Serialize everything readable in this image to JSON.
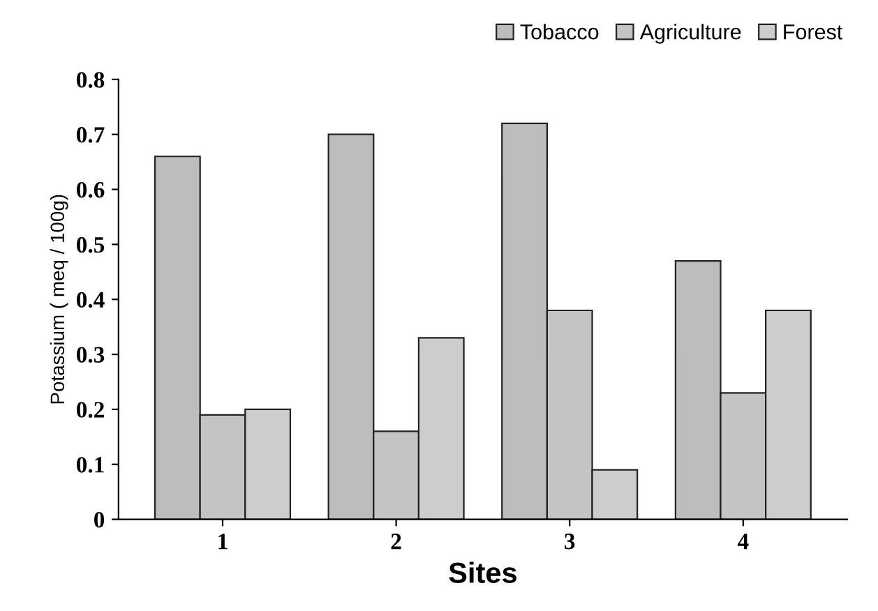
{
  "chart_data": {
    "type": "bar",
    "xlabel": "Sites",
    "ylabel": "Potassium ( meq / 100g)",
    "categories": [
      "1",
      "2",
      "3",
      "4"
    ],
    "series": [
      {
        "name": "Tobacco",
        "color": "#bdbdbd",
        "values": [
          0.66,
          0.7,
          0.72,
          0.47
        ]
      },
      {
        "name": "Agriculture",
        "color": "#c4c4c4",
        "values": [
          0.19,
          0.16,
          0.38,
          0.23
        ]
      },
      {
        "name": "Forest",
        "color": "#cdcdcd",
        "values": [
          0.2,
          0.33,
          0.09,
          0.38
        ]
      }
    ],
    "ylim": [
      0,
      0.8
    ],
    "yticks": [
      0,
      0.1,
      0.2,
      0.3,
      0.4,
      0.5,
      0.6,
      0.7,
      0.8
    ],
    "grid": false,
    "legend": "top right"
  }
}
